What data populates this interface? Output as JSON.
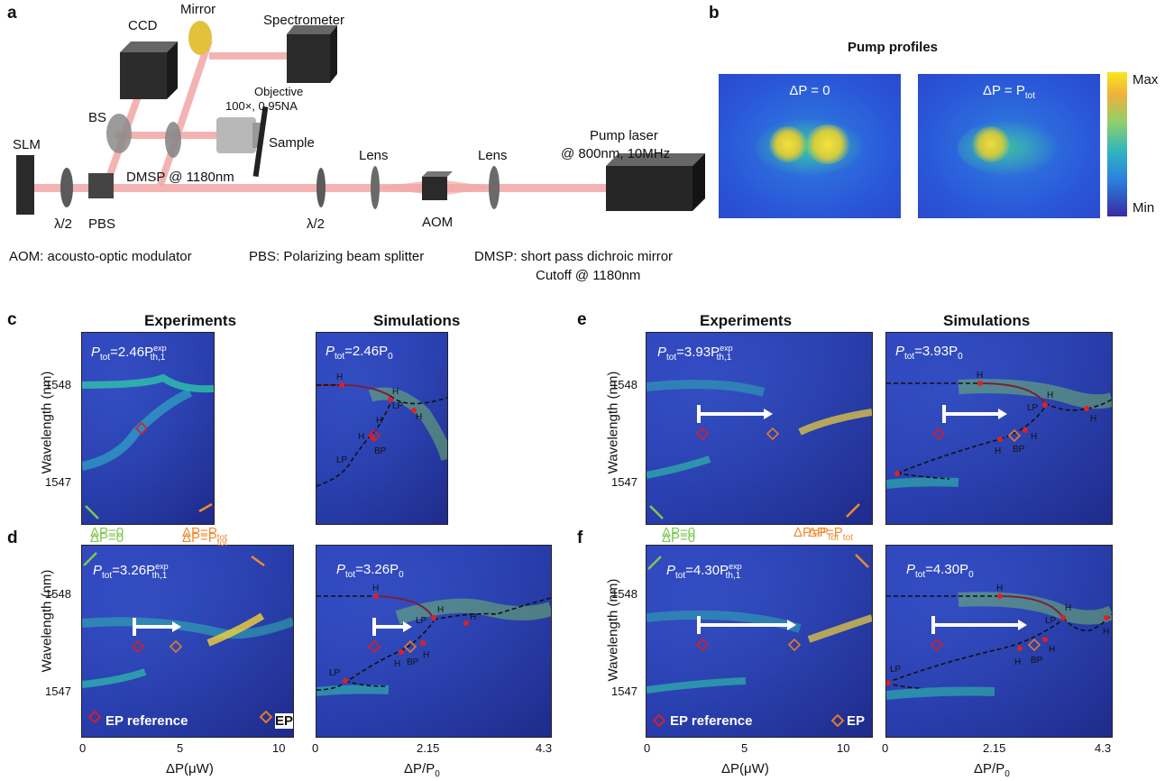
{
  "panels": {
    "a": {
      "label": "a",
      "components": {
        "slm": "SLM",
        "halfwave1": "λ/2",
        "pbs": "PBS",
        "bs": "BS",
        "ccd": "CCD",
        "mirror": "Mirror",
        "spectrometer": "Spectrometer",
        "objective_line1": "Objective",
        "objective_line2": "100×, 0.95NA",
        "sample": "Sample",
        "dmsp": "DMSP @ 1180nm",
        "halfwave2": "λ/2",
        "lens1": "Lens",
        "aom": "AOM",
        "lens2": "Lens",
        "pump_line1": "Pump laser",
        "pump_line2": "@ 800nm, 10MHz"
      },
      "legend": {
        "aom": "AOM: acousto-optic modulator",
        "pbs": "PBS: Polarizing beam splitter",
        "dmsp_line1": "DMSP: short pass dichroic mirror",
        "dmsp_line2": "Cutoff @ 1180nm"
      }
    },
    "b": {
      "label": "b",
      "title": "Pump profiles",
      "left_label": "ΔP = 0",
      "right_label": "ΔP = P",
      "right_label_sub": "tot",
      "colorbar_max": "Max",
      "colorbar_min": "Min"
    },
    "c": {
      "label": "c",
      "exp_title": "Experiments",
      "sim_title": "Simulations",
      "exp_ptot": "P",
      "exp_ptot_sub": "tot",
      "exp_value": "=2.46P",
      "exp_sup": "exp",
      "exp_sub": "th,1",
      "sim_ptot": "P",
      "sim_ptot_sub": "tot",
      "sim_value": "=2.46P",
      "sim_sub": "0",
      "ylabel": "Wavelength (nm)",
      "yticks": [
        "1548",
        "1547"
      ],
      "dp0": "ΔP=0",
      "dpP": "ΔP=P",
      "dpP_sub": "tot"
    },
    "d": {
      "label": "d",
      "exp_ptot": "P",
      "exp_ptot_sub": "tot",
      "exp_value": "=3.26P",
      "exp_sup": "exp",
      "exp_sub": "th,1",
      "sim_ptot": "P",
      "sim_ptot_sub": "tot",
      "sim_value": "=3.26P",
      "sim_sub": "0",
      "ylabel": "Wavelength (nm)",
      "yticks": [
        "1548",
        "1547"
      ],
      "legend_ep_ref": "EP reference",
      "legend_ep": "EP",
      "xticks_exp": [
        "0",
        "5",
        "10"
      ],
      "xlabel_exp": "ΔP(μW)",
      "xticks_sim": [
        "0",
        "2.15",
        "4.3"
      ],
      "xlabel_sim": "ΔP/P",
      "xlabel_sim_sub": "0"
    },
    "e": {
      "label": "e",
      "exp_title": "Experiments",
      "sim_title": "Simulations",
      "exp_ptot": "P",
      "exp_ptot_sub": "tot",
      "exp_value": "=3.93P",
      "exp_sup": "exp",
      "exp_sub": "th,1",
      "sim_ptot": "P",
      "sim_ptot_sub": "tot",
      "sim_value": "=3.93P",
      "sim_sub": "0",
      "ylabel": "Wavelength (nm)",
      "yticks": [
        "1548",
        "1547"
      ],
      "dp0": "ΔP=0",
      "dpP": "ΔP=P",
      "dpP_sub": "tot"
    },
    "f": {
      "label": "f",
      "exp_ptot": "P",
      "exp_ptot_sub": "tot",
      "exp_value": "=4.30P",
      "exp_sup": "exp",
      "exp_sub": "th,1",
      "sim_ptot": "P",
      "sim_ptot_sub": "tot",
      "sim_value": "=4.30P",
      "sim_sub": "0",
      "ylabel": "Wavelength (nm)",
      "yticks": [
        "1548",
        "1547"
      ],
      "legend_ep_ref": "EP reference",
      "legend_ep": "EP",
      "xticks_exp": [
        "0",
        "5",
        "10"
      ],
      "xlabel_exp": "ΔP(μW)",
      "xticks_sim": [
        "0",
        "2.15",
        "4.3"
      ],
      "xlabel_sim": "ΔP/P",
      "xlabel_sim_sub": "0"
    }
  },
  "sim_markers": {
    "H": "H",
    "LP": "LP",
    "BP": "BP"
  },
  "colors": {
    "ep_reference": "#d0202a",
    "ep": "#e07a2c",
    "green_arrow": "#7ec850",
    "orange_arrow": "#f08a30",
    "beam": "#f2a6a6"
  }
}
